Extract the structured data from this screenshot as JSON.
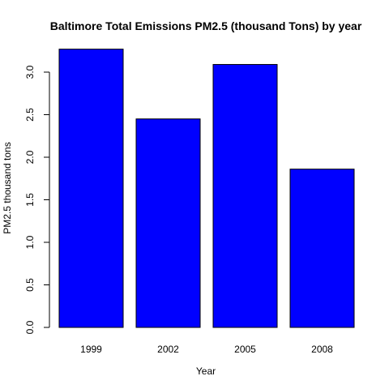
{
  "chart_data": {
    "type": "bar",
    "title": "Baltimore Total Emissions PM2.5 (thousand Tons) by year",
    "xlabel": "Year",
    "ylabel": "PM2.5 thousand tons",
    "categories": [
      "1999",
      "2002",
      "2005",
      "2008"
    ],
    "values": [
      3.27,
      2.45,
      3.09,
      1.86
    ],
    "yticks": [
      "0.0",
      "0.5",
      "1.0",
      "1.5",
      "2.0",
      "2.5",
      "3.0"
    ],
    "ylim": [
      0,
      3.3
    ],
    "bar_color": "#0000ff",
    "bar_border_color": "#000000",
    "grid": false,
    "legend": "none"
  }
}
